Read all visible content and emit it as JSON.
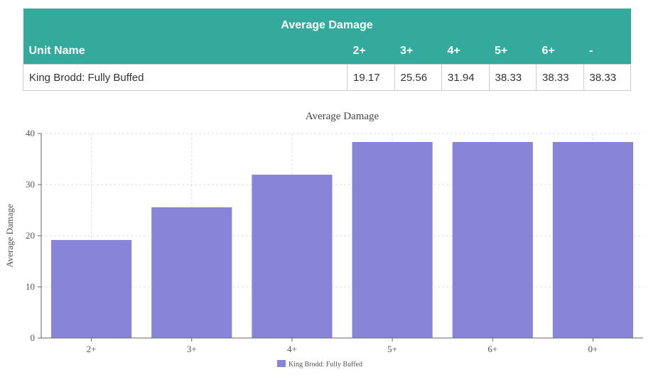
{
  "table": {
    "title": "Average Damage",
    "headers": [
      "Unit Name",
      "2+",
      "3+",
      "4+",
      "5+",
      "6+",
      "-"
    ],
    "rows": [
      [
        "King Brodd: Fully Buffed",
        "19.17",
        "25.56",
        "31.94",
        "38.33",
        "38.33",
        "38.33"
      ]
    ]
  },
  "colors": {
    "header": "#33aa9b",
    "bar": "#8884d8"
  },
  "chart_data": {
    "type": "bar",
    "title": "Average Damage",
    "categories": [
      "2+",
      "3+",
      "4+",
      "5+",
      "6+",
      "0+"
    ],
    "series": [
      {
        "name": "King Brodd: Fully Buffed",
        "values": [
          19.17,
          25.56,
          31.94,
          38.33,
          38.33,
          38.33
        ]
      }
    ],
    "xlabel": "",
    "ylabel": "Average Damage",
    "ylim": [
      0,
      40
    ],
    "yticks": [
      0,
      10,
      20,
      30,
      40
    ],
    "grid": true,
    "legend_position": "bottom"
  }
}
